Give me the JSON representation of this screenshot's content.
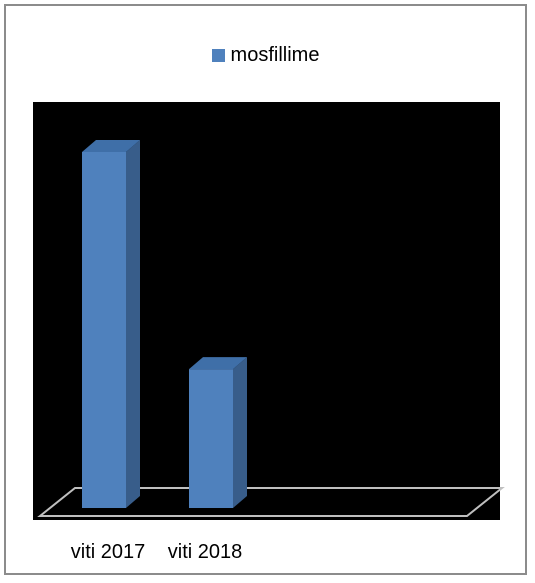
{
  "chart_data": {
    "type": "bar",
    "title": "",
    "xlabel": "",
    "ylabel": "",
    "categories": [
      "viti 2017",
      "viti 2018"
    ],
    "series": [
      {
        "name": "mosfillime",
        "values": [
          100,
          39
        ]
      }
    ],
    "ylim": [
      0,
      100
    ],
    "legend_position": "top",
    "grid": false,
    "three_d": true
  },
  "colors": {
    "bar_front": "#4f81bd",
    "bar_side": "#385d8a",
    "bar_top": "#3f6fa8",
    "plot_background": "#000000",
    "floor_stroke": "#bfbfbf"
  }
}
